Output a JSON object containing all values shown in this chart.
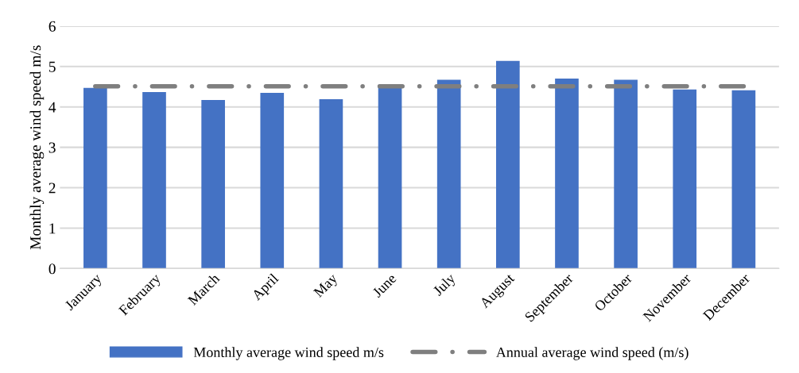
{
  "chart_data": {
    "type": "bar",
    "ylabel": "Monthly average wind speed m/s",
    "categories": [
      "January",
      "February",
      "March",
      "April",
      "May",
      "June",
      "July",
      "August",
      "September",
      "October",
      "November",
      "December"
    ],
    "series": [
      {
        "name": "Monthly average wind speed m/s",
        "color": "#4472c4",
        "values": [
          4.47,
          4.37,
          4.17,
          4.35,
          4.19,
          4.55,
          4.67,
          5.14,
          4.7,
          4.67,
          4.43,
          4.41
        ]
      },
      {
        "name": "Annual average wind speed (m/s)",
        "type": "line",
        "color": "#7f7f7f",
        "line_style": "dashed",
        "values": [
          4.51,
          4.51,
          4.51,
          4.51,
          4.51,
          4.51,
          4.51,
          4.51,
          4.51,
          4.51,
          4.51,
          4.51
        ]
      }
    ],
    "ylim": [
      0,
      6
    ],
    "yticks": [
      0,
      1,
      2,
      3,
      4,
      5,
      6
    ],
    "grid": "y",
    "legend": "bottom"
  }
}
